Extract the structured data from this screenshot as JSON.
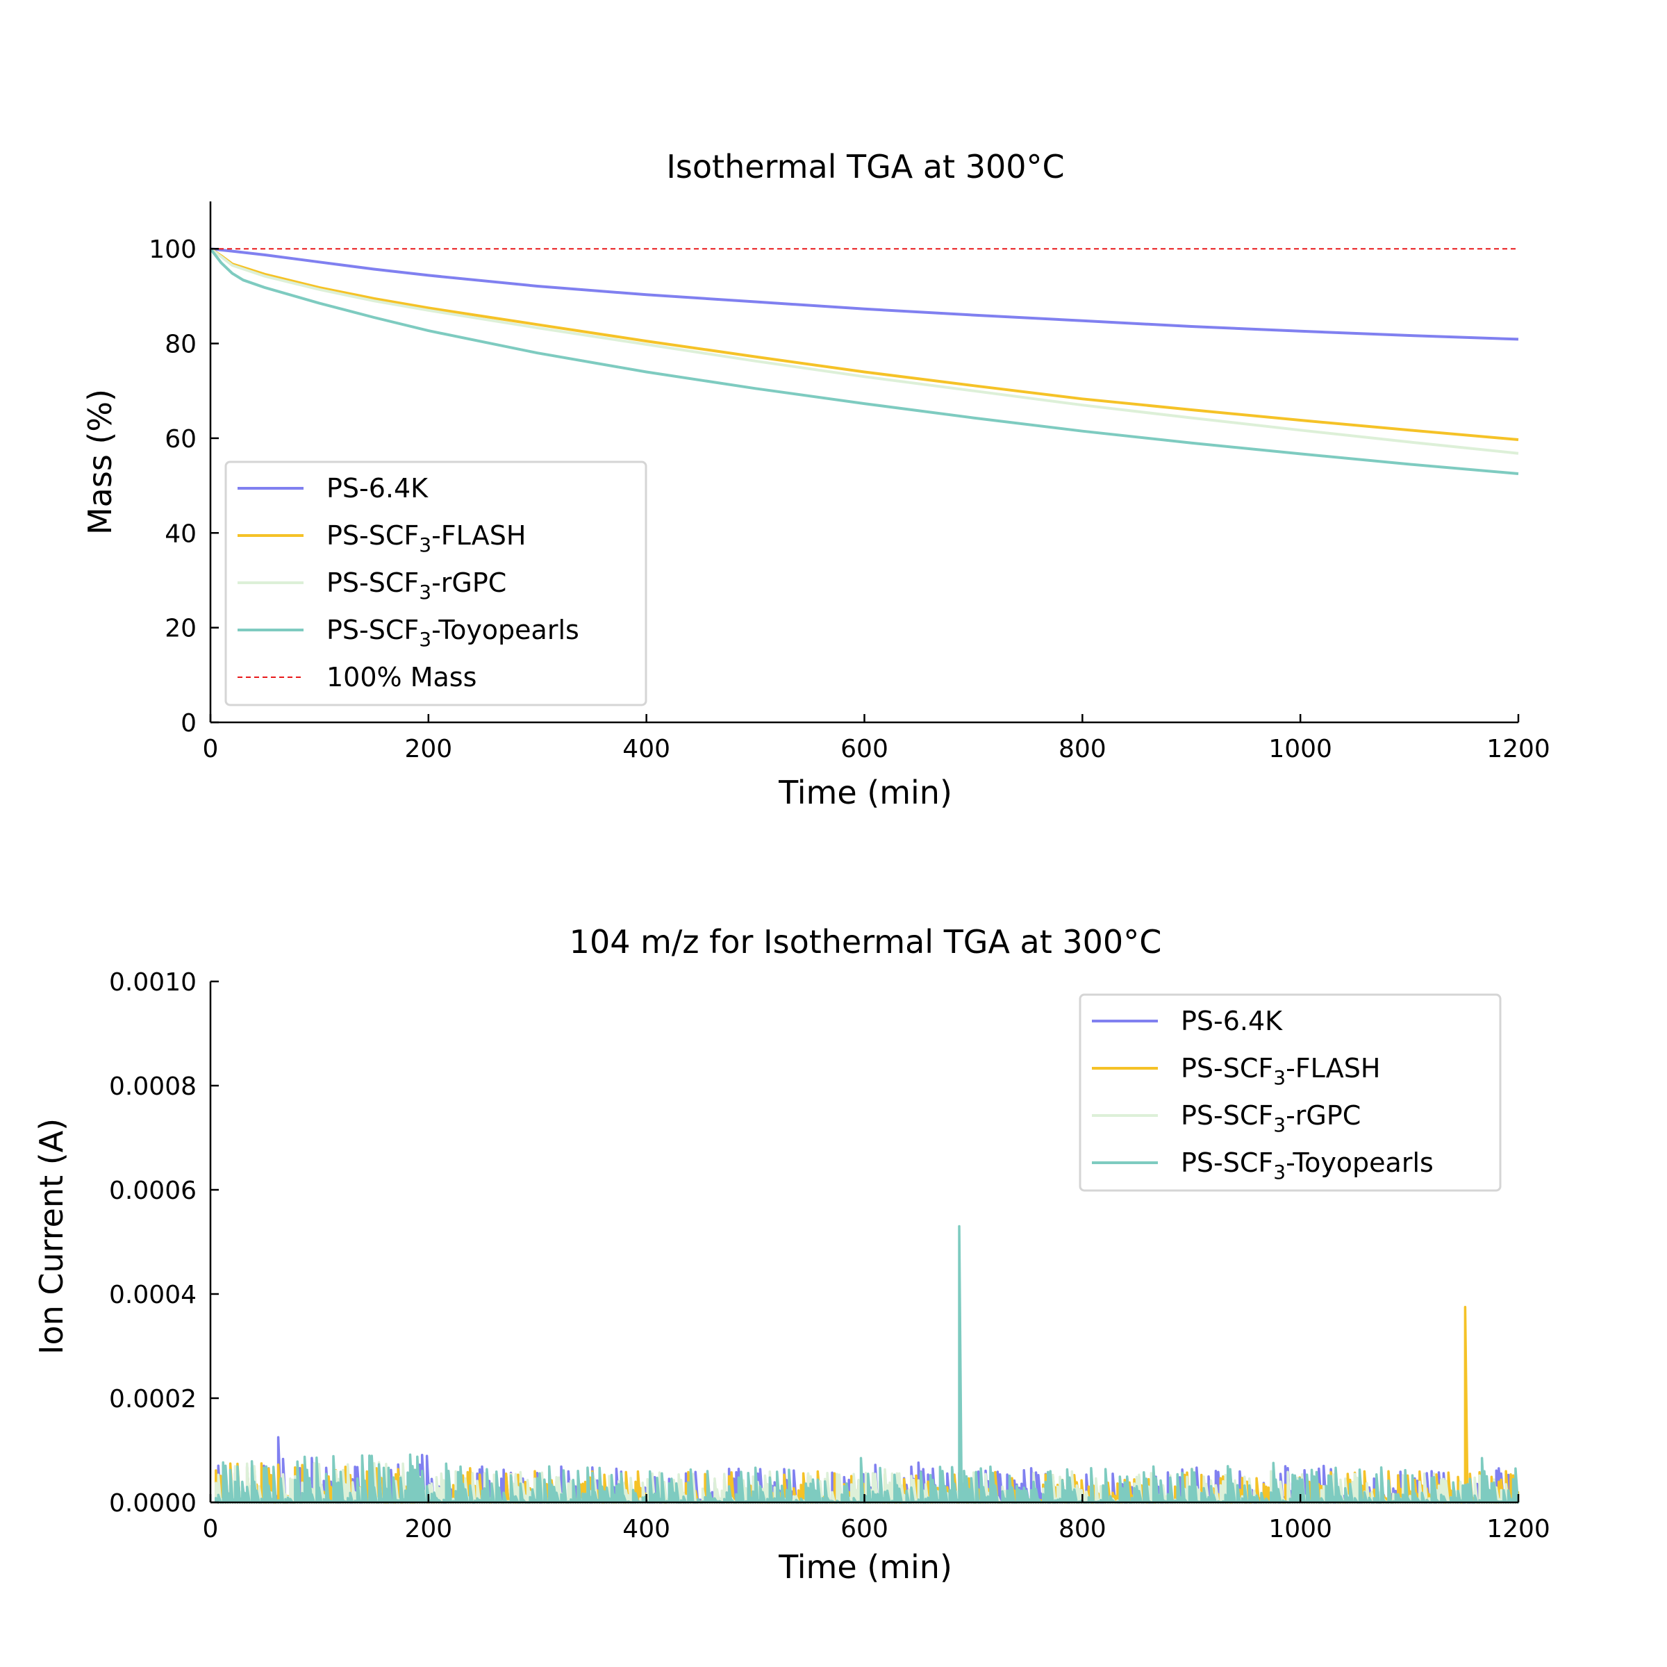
{
  "chart_data": [
    {
      "type": "line",
      "title": "Isothermal TGA at 300°C",
      "xlabel": "Time (min)",
      "ylabel": "Mass (%)",
      "xlim": [
        0,
        1200
      ],
      "ylim": [
        0,
        110
      ],
      "xticks": [
        "0",
        "200",
        "400",
        "600",
        "800",
        "1000",
        "1200"
      ],
      "yticks": [
        "0",
        "20",
        "40",
        "60",
        "80",
        "100"
      ],
      "grid": false,
      "legend_position": "lower-left",
      "series": [
        {
          "name": "PS-6.4K",
          "label_main": "PS-6.4K",
          "color": "#8080f0",
          "x": [
            0,
            20,
            50,
            100,
            150,
            200,
            300,
            400,
            500,
            600,
            700,
            800,
            900,
            1000,
            1100,
            1200
          ],
          "y": [
            100,
            99.5,
            98.7,
            97.2,
            95.7,
            94.4,
            92.1,
            90.3,
            88.8,
            87.3,
            86.0,
            84.8,
            83.6,
            82.6,
            81.7,
            80.9
          ]
        },
        {
          "name": "PS-SCF3-FLASH",
          "label_main": "PS-SCF",
          "label_sub": "3",
          "label_suffix": "-FLASH",
          "color": "#f5c227",
          "x": [
            0,
            10,
            20,
            50,
            100,
            150,
            200,
            300,
            400,
            500,
            600,
            700,
            800,
            900,
            1000,
            1100,
            1200
          ],
          "y": [
            100,
            98.5,
            96.8,
            94.6,
            91.8,
            89.5,
            87.5,
            84.0,
            80.5,
            77.2,
            74.0,
            71.1,
            68.3,
            66.0,
            63.8,
            61.7,
            59.7
          ]
        },
        {
          "name": "PS-SCF3-rGPC",
          "label_main": "PS-SCF",
          "label_sub": "3",
          "label_suffix": "-rGPC",
          "color": "#ddf0d8",
          "x": [
            0,
            10,
            20,
            50,
            100,
            150,
            200,
            300,
            400,
            500,
            600,
            700,
            800,
            900,
            1000,
            1100,
            1200
          ],
          "y": [
            100,
            98.3,
            96.5,
            94.2,
            91.4,
            89.0,
            87.0,
            83.3,
            79.8,
            76.3,
            73.0,
            70.0,
            67.0,
            64.3,
            61.7,
            59.2,
            56.8
          ]
        },
        {
          "name": "PS-SCF3-Toyopearls",
          "label_main": "PS-SCF",
          "label_sub": "3",
          "label_suffix": "-Toyopearls",
          "color": "#7ecbc0",
          "x": [
            0,
            10,
            20,
            30,
            50,
            100,
            150,
            200,
            300,
            400,
            500,
            600,
            700,
            800,
            900,
            1000,
            1100,
            1200
          ],
          "y": [
            100,
            97.0,
            94.8,
            93.4,
            91.8,
            88.5,
            85.5,
            82.7,
            78.0,
            74.0,
            70.5,
            67.3,
            64.3,
            61.5,
            59.0,
            56.7,
            54.5,
            52.5
          ]
        },
        {
          "name": "100% Mass",
          "label_main": "100% Mass",
          "color": "#e8191a",
          "dashed": true,
          "x": [
            0,
            1200
          ],
          "y": [
            100,
            100
          ]
        }
      ]
    },
    {
      "type": "line",
      "title": "104 m/z for Isothermal TGA at 300°C",
      "xlabel": "Time (min)",
      "ylabel": "Ion Current (A)",
      "xlim": [
        0,
        1200
      ],
      "ylim": [
        0,
        0.001
      ],
      "xticks": [
        "0",
        "200",
        "400",
        "600",
        "800",
        "1000",
        "1200"
      ],
      "yticks": [
        "0.0000",
        "0.0002",
        "0.0004",
        "0.0006",
        "0.0008",
        "0.0010"
      ],
      "grid": false,
      "legend_position": "upper-right",
      "noise_note": "dense noisy traces near baseline, typical level ~0.00002-0.00007 A",
      "series": [
        {
          "name": "PS-6.4K",
          "label_main": "PS-6.4K",
          "color": "#8080f0",
          "baseline_peak": 7e-05,
          "spikes": [
            [
              62,
              0.000125
            ],
            [
              1022,
              7e-05
            ]
          ]
        },
        {
          "name": "PS-SCF3-FLASH",
          "label_main": "PS-SCF",
          "label_sub": "3",
          "label_suffix": "-FLASH",
          "color": "#f5c227",
          "baseline_peak": 6e-05,
          "spikes": [
            [
              1152,
              0.000375
            ]
          ]
        },
        {
          "name": "PS-SCF3-rGPC",
          "label_main": "PS-SCF",
          "label_sub": "3",
          "label_suffix": "-rGPC",
          "color": "#ddf0d8",
          "baseline_peak": 6e-05,
          "spikes": []
        },
        {
          "name": "PS-SCF3-Toyopearls",
          "label_main": "PS-SCF",
          "label_sub": "3",
          "label_suffix": "-Toyopearls",
          "color": "#7ecbc0",
          "baseline_peak": 7e-05,
          "spikes": [
            [
              688,
              0.00053
            ],
            [
              597,
              8.5e-05
            ],
            [
              1167,
              8.5e-05
            ]
          ]
        }
      ]
    }
  ]
}
